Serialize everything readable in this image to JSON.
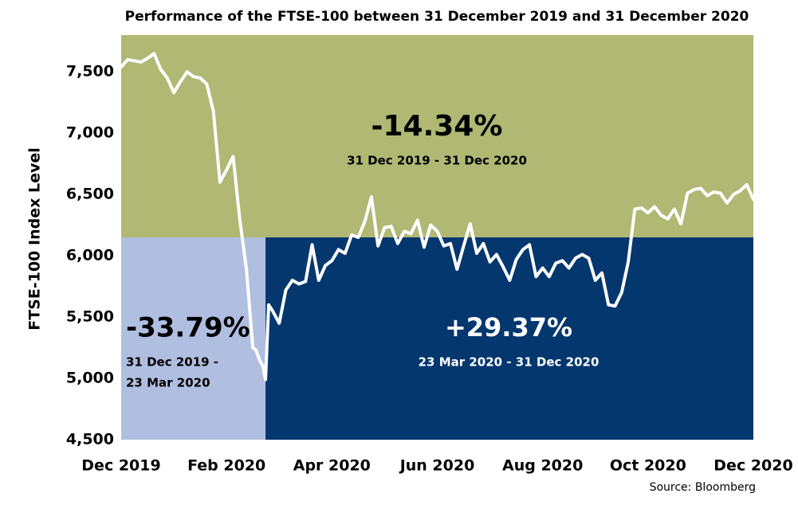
{
  "chart_data": {
    "type": "line",
    "title": "Performance of the FTSE-100 between 31 December 2019 and 31 December 2020",
    "y_label": "FTSE-100 Index Level",
    "source": "Source: Bloomberg",
    "xlim": [
      0,
      12
    ],
    "xticks": [
      {
        "value": 0,
        "label": "Dec 2019"
      },
      {
        "value": 2,
        "label": "Feb 2020"
      },
      {
        "value": 4,
        "label": "Apr 2020"
      },
      {
        "value": 6,
        "label": "Jun 2020"
      },
      {
        "value": 8,
        "label": "Aug 2020"
      },
      {
        "value": 10,
        "label": "Oct 2020"
      },
      {
        "value": 12,
        "label": "Dec 2020"
      }
    ],
    "ylim": [
      4500,
      7800
    ],
    "yticks": [
      {
        "value": 4500,
        "label": "4,500"
      },
      {
        "value": 5000,
        "label": "5,000"
      },
      {
        "value": 5500,
        "label": "5,500"
      },
      {
        "value": 6000,
        "label": "6,000"
      },
      {
        "value": 6500,
        "label": "6,500"
      },
      {
        "value": 7000,
        "label": "7,000"
      },
      {
        "value": 7500,
        "label": "7,500"
      }
    ],
    "regions": [
      {
        "color": "#b0b874",
        "x": [
          0,
          12
        ],
        "y": [
          6150,
          7800
        ]
      },
      {
        "color": "#b0bee0",
        "x": [
          0,
          2.74
        ],
        "y": [
          4500,
          6150
        ]
      },
      {
        "color": "#04376e",
        "x": [
          2.74,
          12
        ],
        "y": [
          4500,
          6150
        ]
      }
    ],
    "annotations": [
      {
        "value_label": "-14.34%",
        "period": [
          "31 Dec 2019 - 31 Dec 2020"
        ]
      },
      {
        "value_label": "-33.79%",
        "period": [
          "31 Dec 2019 -",
          "23 Mar 2020"
        ]
      },
      {
        "value_label": "+29.37%",
        "period": [
          "23 Mar 2020 - 31 Dec 2020"
        ]
      }
    ],
    "series": [
      {
        "name": "FTSE-100",
        "color": "#ffffff",
        "x": [
          0,
          0.125,
          0.25,
          0.375,
          0.5,
          0.625,
          0.75,
          0.875,
          1.0,
          1.125,
          1.25,
          1.375,
          1.5,
          1.625,
          1.75,
          1.875,
          2.0,
          2.125,
          2.25,
          2.375,
          2.5,
          2.56,
          2.625,
          2.69,
          2.74,
          2.8,
          2.875,
          3.0,
          3.125,
          3.25,
          3.375,
          3.5,
          3.625,
          3.75,
          3.875,
          4.0,
          4.125,
          4.25,
          4.375,
          4.5,
          4.625,
          4.75,
          4.875,
          5.0,
          5.125,
          5.25,
          5.375,
          5.5,
          5.625,
          5.75,
          5.875,
          6.0,
          6.125,
          6.25,
          6.375,
          6.5,
          6.625,
          6.75,
          6.875,
          7.0,
          7.125,
          7.25,
          7.375,
          7.5,
          7.625,
          7.75,
          7.875,
          8.0,
          8.125,
          8.25,
          8.375,
          8.5,
          8.625,
          8.75,
          8.875,
          9.0,
          9.125,
          9.25,
          9.375,
          9.5,
          9.625,
          9.75,
          9.875,
          10.0,
          10.125,
          10.25,
          10.375,
          10.5,
          10.625,
          10.75,
          10.875,
          11.0,
          11.125,
          11.25,
          11.375,
          11.5,
          11.625,
          11.75,
          11.875,
          12.0
        ],
        "values": [
          7540,
          7600,
          7590,
          7580,
          7610,
          7650,
          7520,
          7450,
          7330,
          7420,
          7500,
          7460,
          7450,
          7400,
          7180,
          6600,
          6700,
          6810,
          6300,
          5900,
          5250,
          5230,
          5150,
          5100,
          4990,
          5600,
          5550,
          5450,
          5720,
          5800,
          5770,
          5790,
          6090,
          5800,
          5920,
          5960,
          6050,
          6020,
          6170,
          6150,
          6280,
          6480,
          6080,
          6230,
          6240,
          6100,
          6200,
          6180,
          6290,
          6070,
          6250,
          6200,
          6080,
          6100,
          5890,
          6080,
          6260,
          6020,
          6100,
          5950,
          6010,
          5910,
          5800,
          5970,
          6050,
          6090,
          5830,
          5900,
          5830,
          5940,
          5960,
          5900,
          5980,
          6010,
          5980,
          5800,
          5860,
          5600,
          5590,
          5700,
          5950,
          6380,
          6390,
          6350,
          6400,
          6330,
          6300,
          6380,
          6260,
          6510,
          6540,
          6550,
          6490,
          6520,
          6510,
          6430,
          6500,
          6530,
          6580,
          6460
        ]
      }
    ]
  }
}
